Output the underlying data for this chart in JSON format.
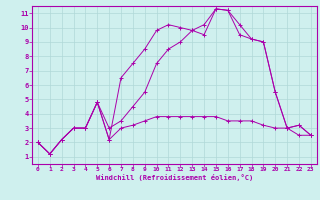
{
  "xlabel": "Windchill (Refroidissement éolien,°C)",
  "xlim": [
    -0.5,
    23.5
  ],
  "ylim": [
    0.5,
    11.5
  ],
  "xticks": [
    0,
    1,
    2,
    3,
    4,
    5,
    6,
    7,
    8,
    9,
    10,
    11,
    12,
    13,
    14,
    15,
    16,
    17,
    18,
    19,
    20,
    21,
    22,
    23
  ],
  "yticks": [
    1,
    2,
    3,
    4,
    5,
    6,
    7,
    8,
    9,
    10,
    11
  ],
  "background_color": "#cff0ee",
  "line_color": "#aa00aa",
  "grid_color": "#b0d8d8",
  "line1_x": [
    0,
    1,
    2,
    3,
    4,
    5,
    6,
    7,
    8,
    9,
    10,
    11,
    12,
    13,
    14,
    15,
    16,
    17,
    18,
    19,
    20,
    21,
    22,
    23
  ],
  "line1_y": [
    2,
    1.2,
    2.2,
    3,
    3,
    4.8,
    2.2,
    3,
    3.2,
    3.5,
    3.8,
    3.8,
    3.8,
    3.8,
    3.8,
    3.8,
    3.5,
    3.5,
    3.5,
    3.2,
    3,
    3,
    2.5,
    2.5
  ],
  "line2_x": [
    0,
    1,
    2,
    3,
    4,
    5,
    6,
    7,
    8,
    9,
    10,
    11,
    12,
    13,
    14,
    15,
    16,
    17,
    18,
    19,
    20,
    21,
    22,
    23
  ],
  "line2_y": [
    2,
    1.2,
    2.2,
    3,
    3,
    4.8,
    3,
    3.5,
    4.5,
    5.5,
    7.5,
    8.5,
    9,
    9.8,
    10.2,
    11.3,
    11.2,
    9.5,
    9.2,
    9,
    5.5,
    3,
    3.2,
    2.5
  ],
  "line3_x": [
    0,
    1,
    2,
    3,
    4,
    5,
    6,
    7,
    8,
    9,
    10,
    11,
    12,
    13,
    14,
    15,
    16,
    17,
    18,
    19,
    20,
    21,
    22,
    23
  ],
  "line3_y": [
    2,
    1.2,
    2.2,
    3,
    3,
    4.8,
    2.2,
    6.5,
    7.5,
    8.5,
    9.8,
    10.2,
    10,
    9.8,
    9.5,
    11.3,
    11.2,
    10.2,
    9.2,
    9,
    5.5,
    3,
    3.2,
    2.5
  ]
}
